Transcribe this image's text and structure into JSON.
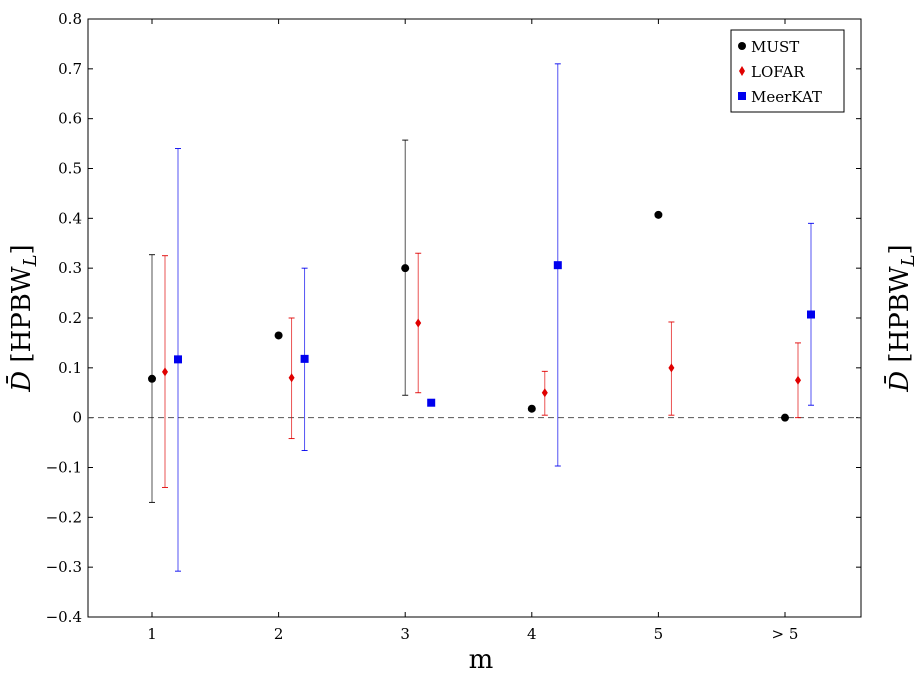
{
  "chart_data": {
    "type": "scatter",
    "xlabel": "m",
    "ylabel": "D̄ [HPBW_L]",
    "ylabel_right": "D̄ [HPBW_L]",
    "categories": [
      "1",
      "2",
      "3",
      "4",
      "5",
      "> 5"
    ],
    "ylim": [
      -0.4,
      0.8
    ],
    "y_ticks": [
      "−0.4",
      "−0.3",
      "−0.2",
      "−0.1",
      "0",
      "0.1",
      "0.2",
      "0.3",
      "0.4",
      "0.5",
      "0.6",
      "0.7",
      "0.8"
    ],
    "y_tick_values": [
      -0.4,
      -0.3,
      -0.2,
      -0.1,
      0,
      0.1,
      0.2,
      0.3,
      0.4,
      0.5,
      0.6,
      0.7,
      0.8
    ],
    "reference_line": {
      "y": 0,
      "style": "dashed"
    },
    "grid": false,
    "legend_position": "top-right",
    "series": [
      {
        "name": "MUST",
        "color": "#000000",
        "marker": "circle",
        "values": [
          0.078,
          0.165,
          0.3,
          0.018,
          0.407,
          0.0
        ],
        "err_low": [
          -0.17,
          null,
          0.045,
          null,
          null,
          null
        ],
        "err_high": [
          0.327,
          null,
          0.557,
          null,
          null,
          null
        ]
      },
      {
        "name": "LOFAR",
        "color": "#e00000",
        "marker": "diamond",
        "values": [
          0.092,
          0.08,
          0.19,
          0.05,
          0.1,
          0.075
        ],
        "err_low": [
          -0.14,
          -0.042,
          0.05,
          0.005,
          0.005,
          0.0
        ],
        "err_high": [
          0.325,
          0.2,
          0.33,
          0.093,
          0.192,
          0.15
        ]
      },
      {
        "name": "MeerKAT",
        "color": "#0000ee",
        "marker": "square",
        "values": [
          0.117,
          0.118,
          0.03,
          0.306,
          null,
          0.207
        ],
        "err_low": [
          -0.308,
          -0.066,
          null,
          -0.097,
          null,
          0.025
        ],
        "err_high": [
          0.54,
          0.3,
          null,
          0.71,
          null,
          0.39
        ]
      }
    ]
  }
}
